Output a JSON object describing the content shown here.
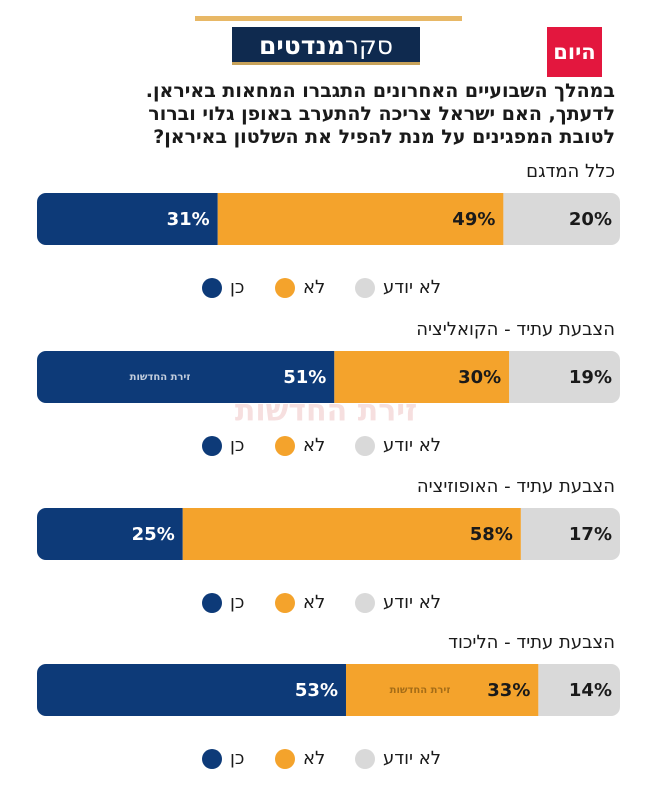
{
  "header": {
    "title_part1": "סקר",
    "title_part2": "מנדטים",
    "logo": "היום",
    "question": [
      "במהלך השבועיים האחרונים התגברו המחאות באיראן.",
      "לדעתך, האם ישראל צריכה להתערב באופן גלוי וברור",
      "לטובת המפגינים על מנת להפיל את השלטון באיראן?"
    ],
    "watermark": "זירת החדשות"
  },
  "chart_data": [
    {
      "type": "bar",
      "stacked": true,
      "orientation": "horizontal",
      "title": "כלל המדגם",
      "xlim": [
        0,
        100
      ],
      "series": [
        {
          "name": "כן",
          "color": "#0d3a78",
          "values": [
            31
          ],
          "value_labels": [
            "31%"
          ]
        },
        {
          "name": "לא",
          "color": "#f4a32c",
          "values": [
            49
          ],
          "value_labels": [
            "49%"
          ]
        },
        {
          "name": "לא יודע",
          "color": "#d9d9d9",
          "values": [
            20
          ],
          "value_labels": [
            "20%"
          ]
        }
      ]
    },
    {
      "type": "bar",
      "stacked": true,
      "orientation": "horizontal",
      "title": "הצבעת עתיד - הקואליציה",
      "xlim": [
        0,
        100
      ],
      "series": [
        {
          "name": "כן",
          "color": "#0d3a78",
          "values": [
            51
          ],
          "value_labels": [
            "51%"
          ]
        },
        {
          "name": "לא",
          "color": "#f4a32c",
          "values": [
            30
          ],
          "value_labels": [
            "30%"
          ]
        },
        {
          "name": "לא יודע",
          "color": "#d9d9d9",
          "values": [
            19
          ],
          "value_labels": [
            "19%"
          ]
        }
      ]
    },
    {
      "type": "bar",
      "stacked": true,
      "orientation": "horizontal",
      "title": "הצבעת עתיד - האופוזיציה",
      "xlim": [
        0,
        100
      ],
      "series": [
        {
          "name": "כן",
          "color": "#0d3a78",
          "values": [
            25
          ],
          "value_labels": [
            "25%"
          ]
        },
        {
          "name": "לא",
          "color": "#f4a32c",
          "values": [
            58
          ],
          "value_labels": [
            "58%"
          ]
        },
        {
          "name": "לא יודע",
          "color": "#d9d9d9",
          "values": [
            17
          ],
          "value_labels": [
            "17%"
          ]
        }
      ]
    },
    {
      "type": "bar",
      "stacked": true,
      "orientation": "horizontal",
      "title": "הצבעת עתיד - הליכוד",
      "xlim": [
        0,
        100
      ],
      "series": [
        {
          "name": "כן",
          "color": "#0d3a78",
          "values": [
            53
          ],
          "value_labels": [
            "53%"
          ]
        },
        {
          "name": "לא",
          "color": "#f4a32c",
          "values": [
            33
          ],
          "value_labels": [
            "33%"
          ]
        },
        {
          "name": "לא יודע",
          "color": "#d9d9d9",
          "values": [
            14
          ],
          "value_labels": [
            "14%"
          ]
        }
      ]
    }
  ]
}
